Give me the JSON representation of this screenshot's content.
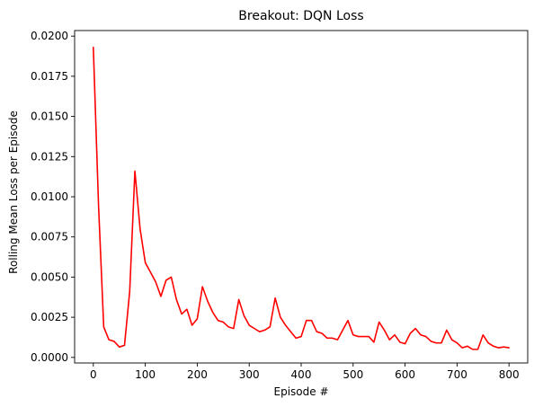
{
  "chart_data": {
    "type": "line",
    "title": "Breakout: DQN Loss",
    "xlabel": "Episode #",
    "ylabel": "Rolling Mean Loss per Episode",
    "xlim": [
      -36,
      836
    ],
    "ylim": [
      -0.000346,
      0.020346
    ],
    "xticks": [
      0,
      100,
      200,
      300,
      400,
      500,
      600,
      700,
      800
    ],
    "xtick_labels": [
      "0",
      "100",
      "200",
      "300",
      "400",
      "500",
      "600",
      "700",
      "800"
    ],
    "yticks": [
      0.0,
      0.0025,
      0.005,
      0.0075,
      0.01,
      0.0125,
      0.015,
      0.0175,
      0.02
    ],
    "ytick_labels": [
      "0.0000",
      "0.0025",
      "0.0050",
      "0.0075",
      "0.0100",
      "0.0125",
      "0.0150",
      "0.0175",
      "0.0200"
    ],
    "grid": false,
    "legend": "none",
    "series": [
      {
        "color": "#ff0000",
        "x": [
          0,
          10,
          20,
          30,
          40,
          50,
          60,
          70,
          80,
          90,
          100,
          110,
          120,
          130,
          140,
          150,
          160,
          170,
          180,
          190,
          200,
          210,
          220,
          230,
          240,
          250,
          260,
          270,
          280,
          290,
          300,
          310,
          320,
          330,
          340,
          350,
          360,
          370,
          380,
          390,
          400,
          410,
          420,
          430,
          440,
          450,
          460,
          470,
          480,
          490,
          500,
          510,
          520,
          530,
          540,
          550,
          560,
          570,
          580,
          590,
          600,
          610,
          620,
          630,
          640,
          650,
          660,
          670,
          680,
          690,
          700,
          710,
          720,
          730,
          740,
          750,
          760,
          770,
          780,
          790,
          800
        ],
        "y": [
          0.0193,
          0.0095,
          0.0019,
          0.0011,
          0.001,
          0.00065,
          0.00075,
          0.0041,
          0.0116,
          0.008,
          0.0059,
          0.0053,
          0.0047,
          0.0038,
          0.0048,
          0.005,
          0.0036,
          0.0027,
          0.003,
          0.002,
          0.0024,
          0.0044,
          0.0035,
          0.0028,
          0.0023,
          0.0022,
          0.0019,
          0.0018,
          0.0036,
          0.0026,
          0.002,
          0.0018,
          0.0016,
          0.0017,
          0.0019,
          0.0037,
          0.0025,
          0.002,
          0.0016,
          0.0012,
          0.0013,
          0.0023,
          0.0023,
          0.0016,
          0.0015,
          0.0012,
          0.0012,
          0.0011,
          0.0017,
          0.0023,
          0.0014,
          0.0013,
          0.0013,
          0.0013,
          0.00095,
          0.0022,
          0.0017,
          0.0011,
          0.0014,
          0.00095,
          0.00085,
          0.0015,
          0.0018,
          0.0014,
          0.0013,
          0.001,
          0.0009,
          0.0009,
          0.0017,
          0.0011,
          0.0009,
          0.0006,
          0.0007,
          0.0005,
          0.0005,
          0.0014,
          0.0009,
          0.0007,
          0.0006,
          0.00065,
          0.0006
        ]
      }
    ]
  }
}
